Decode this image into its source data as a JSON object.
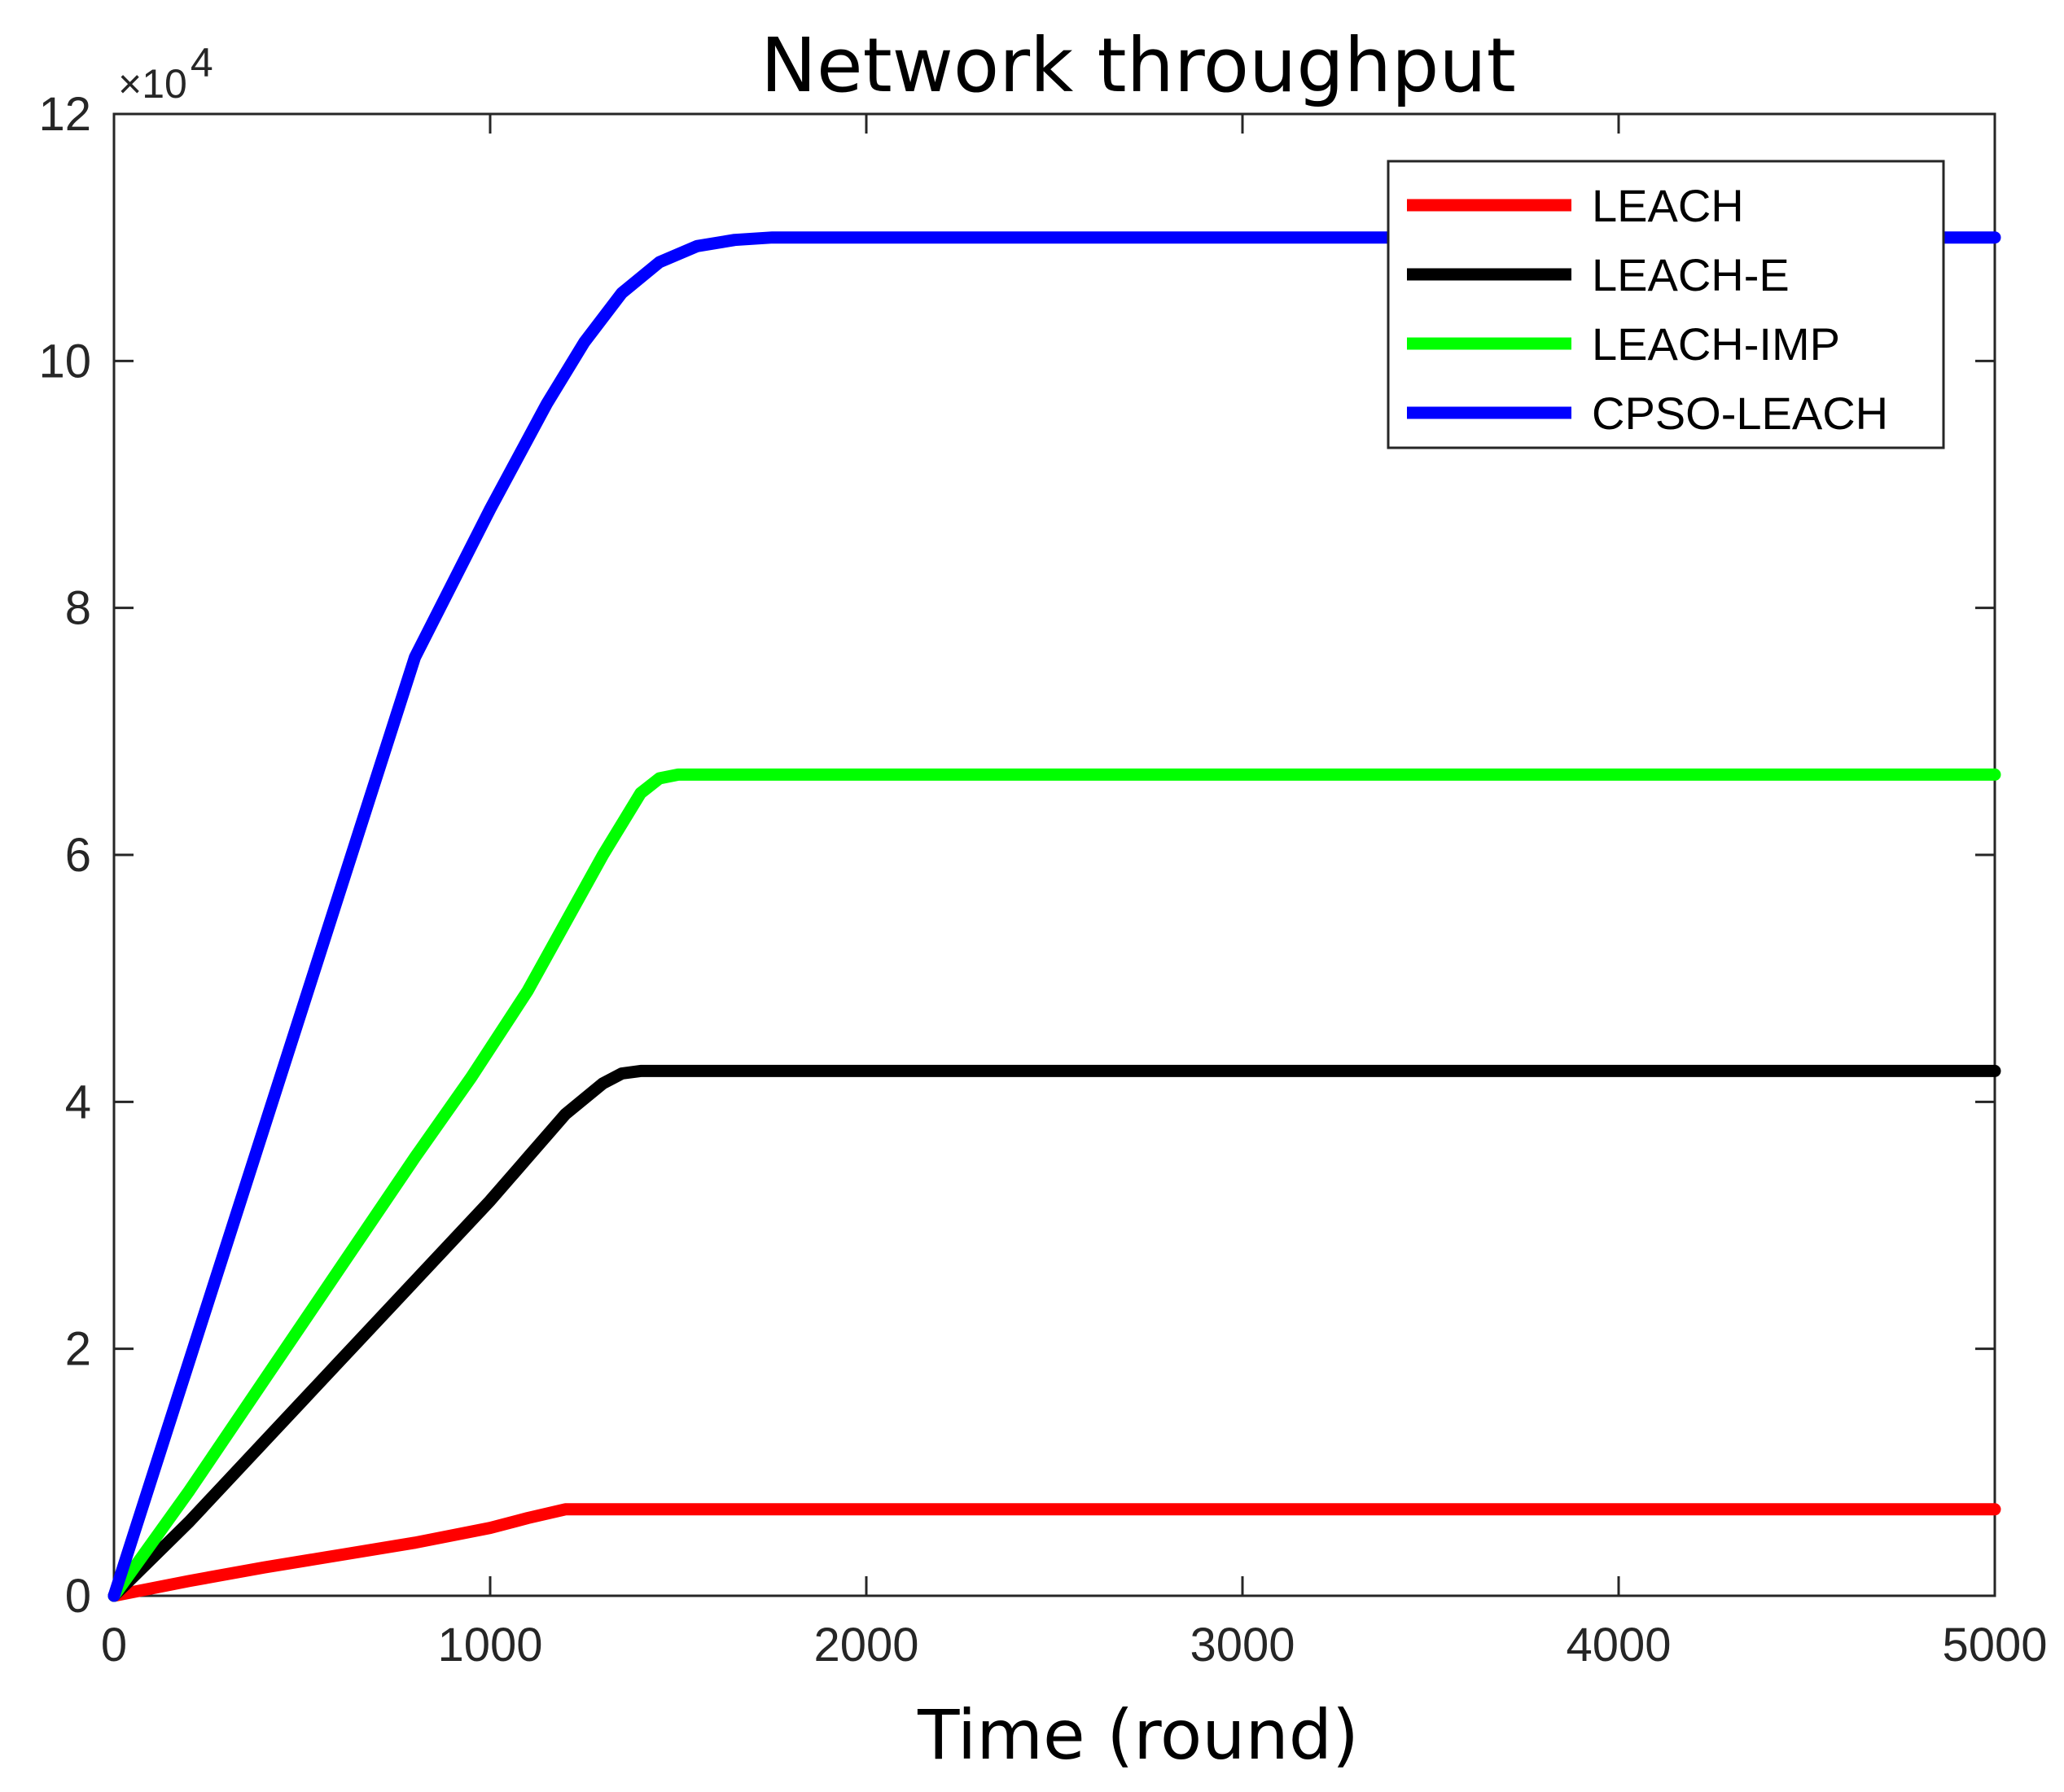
{
  "chart_data": {
    "type": "line",
    "title": "Network throughput",
    "xlabel": "Time (round)",
    "ylabel": "",
    "xlim": [
      0,
      5000
    ],
    "ylim": [
      0,
      120000
    ],
    "xticks": [
      "0",
      "1000",
      "2000",
      "3000",
      "4000",
      "5000"
    ],
    "yticks": [
      "0",
      "2",
      "4",
      "6",
      "8",
      "10",
      "12"
    ],
    "y_multiplier_label": "×10",
    "y_multiplier_exponent": "4",
    "grid": false,
    "legend_position": "top-right",
    "series": [
      {
        "name": "LEACH",
        "color": "#ff0000",
        "x": [
          0,
          200,
          400,
          600,
          800,
          1000,
          1100,
          1200,
          1300,
          5000
        ],
        "y": [
          0,
          1200,
          2300,
          3300,
          4300,
          5500,
          6300,
          7000,
          7000,
          7000
        ]
      },
      {
        "name": "LEACH-E",
        "color": "#000000",
        "x": [
          0,
          200,
          400,
          600,
          800,
          1000,
          1100,
          1200,
          1300,
          1350,
          1400,
          5000
        ],
        "y": [
          0,
          6000,
          12500,
          19000,
          25500,
          32000,
          35500,
          39000,
          41500,
          42300,
          42500,
          42500
        ]
      },
      {
        "name": "LEACH-IMP",
        "color": "#00ff00",
        "x": [
          0,
          200,
          400,
          600,
          800,
          950,
          1100,
          1200,
          1300,
          1400,
          1450,
          1500,
          1600,
          5000
        ],
        "y": [
          0,
          8500,
          17500,
          26500,
          35500,
          42000,
          49000,
          54500,
          60000,
          65000,
          66200,
          66500,
          66500,
          66500
        ]
      },
      {
        "name": "CPSO-LEACH",
        "color": "#0000ff",
        "x": [
          0,
          200,
          400,
          600,
          800,
          1000,
          1150,
          1250,
          1350,
          1450,
          1550,
          1650,
          1750,
          5000
        ],
        "y": [
          0,
          19000,
          38000,
          57000,
          76000,
          88000,
          96500,
          101500,
          105500,
          108000,
          109300,
          109800,
          110000,
          110000
        ]
      }
    ]
  }
}
